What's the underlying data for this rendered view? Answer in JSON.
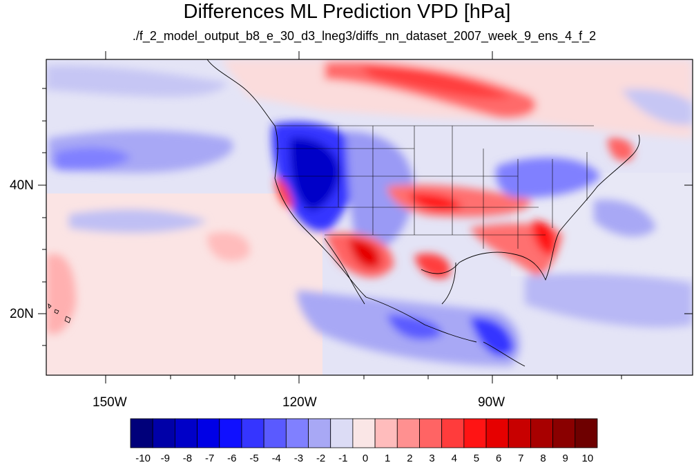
{
  "title": "Differences ML Prediction VPD [hPa]",
  "subtitle": "./f_2_model_output_b8_e_30_d3_lneg3/diffs_nn_dataset_2007_week_9_ens_4_f_2",
  "x_ticks": [
    "150W",
    "120W",
    "90W"
  ],
  "y_ticks": [
    "40N",
    "20N"
  ],
  "colorbar": {
    "labels": [
      "-10",
      "-9",
      "-8",
      "-7",
      "-6",
      "-5",
      "-4",
      "-3",
      "-2",
      "-1",
      "0",
      "1",
      "2",
      "3",
      "4",
      "5",
      "6",
      "7",
      "8",
      "9",
      "10"
    ],
    "colors": [
      "#00007a",
      "#0000a8",
      "#0000c8",
      "#0000e6",
      "#1010ff",
      "#3535ff",
      "#5a5aff",
      "#8080ff",
      "#a8a8f5",
      "#dcdcf5",
      "#fae6e6",
      "#ffbcbc",
      "#ff9090",
      "#ff6464",
      "#ff3c3c",
      "#ff1414",
      "#e60000",
      "#c80000",
      "#a80000",
      "#8a0000",
      "#6e0000"
    ]
  }
}
